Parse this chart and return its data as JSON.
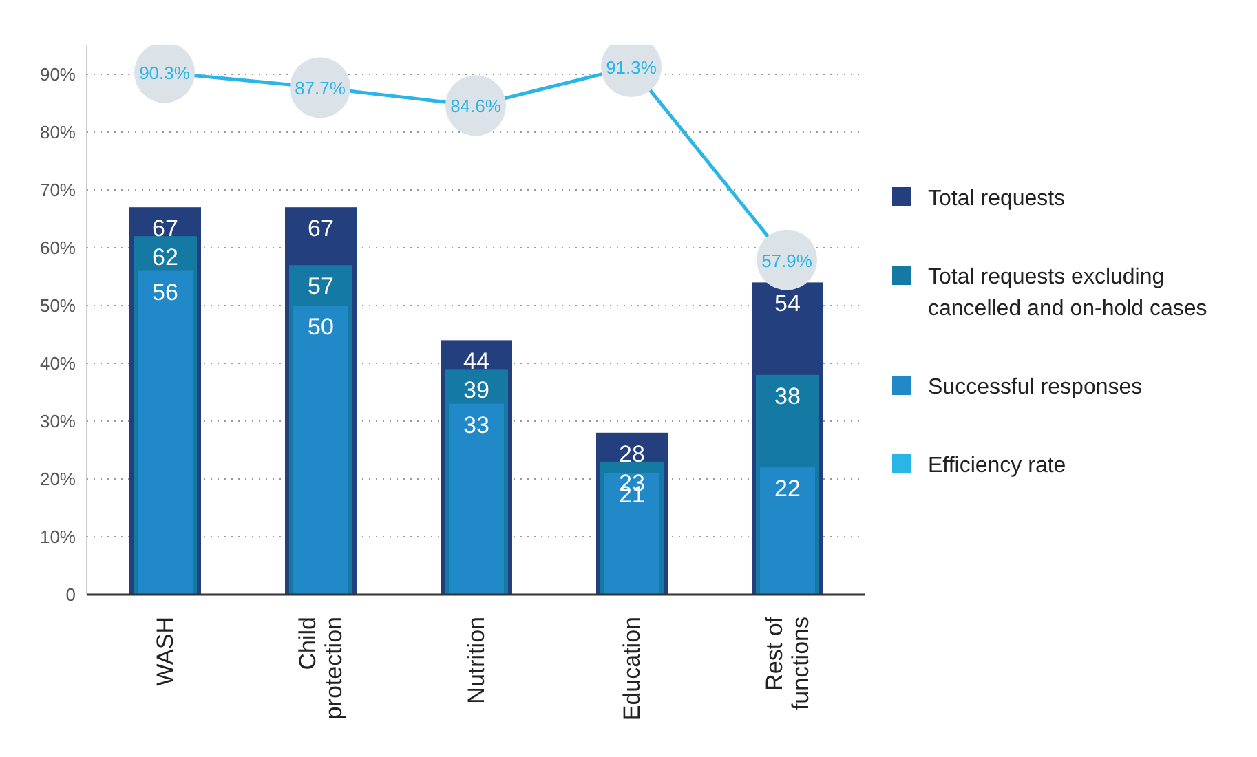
{
  "chart_data": {
    "type": "bar",
    "categories": [
      "WASH",
      "Child protection",
      "Nutrition",
      "Education",
      "Rest of functions"
    ],
    "series": [
      {
        "name": "Total requests",
        "color": "#243f7e",
        "values": [
          67,
          67,
          44,
          28,
          54
        ]
      },
      {
        "name": "Total requests excluding cancelled and on-hold cases",
        "color": "#147aa3",
        "values": [
          62,
          57,
          39,
          23,
          38
        ]
      },
      {
        "name": "Successful responses",
        "color": "#2189c8",
        "values": [
          56,
          50,
          33,
          21,
          22
        ]
      },
      {
        "name": "Efficiency rate",
        "type": "line",
        "color": "#29b5e6",
        "values": [
          90.3,
          87.7,
          84.6,
          91.3,
          57.9
        ],
        "value_labels": [
          "90.3%",
          "87.7%",
          "84.6%",
          "91.3%",
          "57.9%"
        ]
      }
    ],
    "ylim": [
      0,
      95
    ],
    "yticks": [
      0,
      {
        "value": 10,
        "label": "10%"
      },
      {
        "value": 20,
        "label": "20%"
      },
      {
        "value": 30,
        "label": "30%"
      },
      {
        "value": 40,
        "label": "40%"
      },
      {
        "value": 50,
        "label": "50%"
      },
      {
        "value": 60,
        "label": "60%"
      },
      {
        "value": 70,
        "label": "70%"
      },
      {
        "value": 80,
        "label": "80%"
      },
      {
        "value": 90,
        "label": "90%"
      }
    ],
    "grid": "y",
    "legend": "right",
    "data_labels": true,
    "marker": "circle"
  }
}
